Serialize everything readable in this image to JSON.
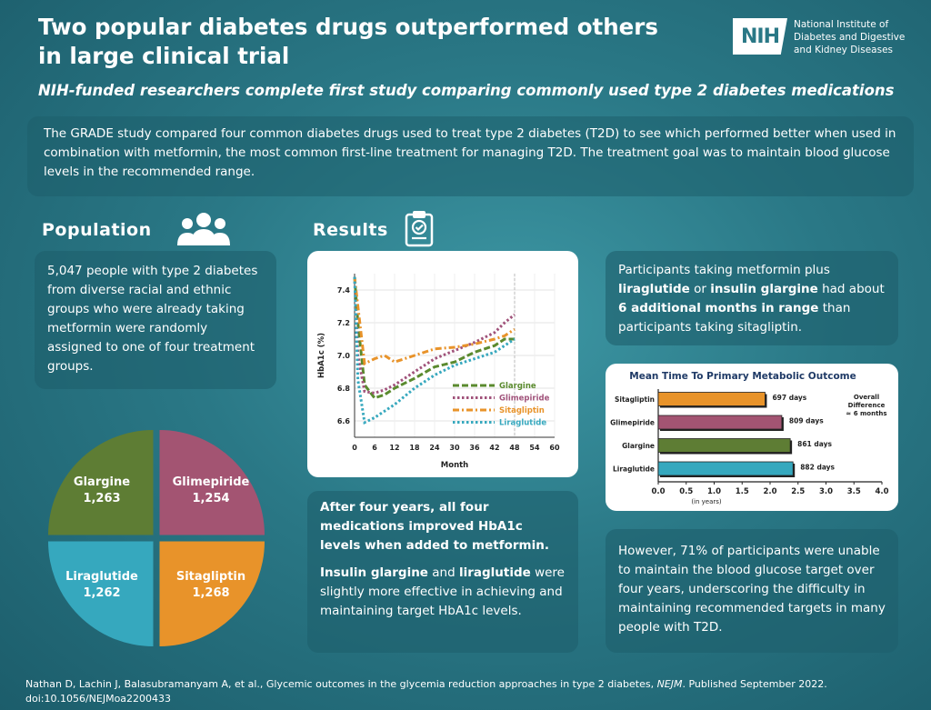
{
  "header": {
    "title_line1": "Two popular diabetes drugs outperformed others",
    "title_line2": "in large clinical trial",
    "subtitle": "NIH-funded researchers complete first study comparing commonly used type 2 diabetes medications",
    "logo_mark": "NIH",
    "logo_line1": "National Institute of",
    "logo_line2": "Diabetes and Digestive",
    "logo_line3": "and Kidney Diseases"
  },
  "intro": "The GRADE study compared four common diabetes drugs used to treat type 2 diabetes (T2D) to see which performed better when used in combination with metformin, the most common first-line treatment for managing T2D. The treatment goal was to maintain blood glucose levels in the recommended range.",
  "population": {
    "heading": "Population",
    "icon": "people-group-icon",
    "text": "5,047 people with type 2 diabetes from diverse racial and ethnic groups who were already taking metformin were randomly assigned to one of four treatment groups.",
    "pie": [
      {
        "name": "Glargine",
        "count": "1,263",
        "value": 1263,
        "color": "#5e7d34"
      },
      {
        "name": "Glimepiride",
        "count": "1,254",
        "value": 1254,
        "color": "#a35472"
      },
      {
        "name": "Liraglutide",
        "count": "1,262",
        "value": 1262,
        "color": "#36a8be"
      },
      {
        "name": "Sitagliptin",
        "count": "1,268",
        "value": 1268,
        "color": "#e8932a"
      }
    ]
  },
  "results": {
    "heading": "Results",
    "icon": "clipboard-check-icon",
    "findings_1": "After four years, all four medications improved HbA1c levels when added to metformin.",
    "findings_2_b1": "Insulin glargine",
    "findings_2_t1": " and ",
    "findings_2_b2": "liraglutide",
    "findings_2_t2": " were slightly more effective in achieving and maintaining target HbA1c levels.",
    "right_1_t1": "Participants taking metformin plus ",
    "right_1_b1": "liraglutide",
    "right_1_t2": " or ",
    "right_1_b2": "insulin glargine",
    "right_1_t3": " had about ",
    "right_1_b3": "6 additional months in range",
    "right_1_t4": " than participants taking sitagliptin.",
    "right_2": "However, 71% of participants were unable to maintain the blood glucose target over four years, underscoring the difficulty in maintaining recommended targets in many people with T2D."
  },
  "chart_data": [
    {
      "type": "line",
      "xlabel": "Month",
      "ylabel": "HbA1c (%)",
      "xlim": [
        0,
        60
      ],
      "ylim": [
        6.5,
        7.5
      ],
      "xticks": [
        "0",
        "6",
        "12",
        "18",
        "24",
        "30",
        "36",
        "42",
        "48",
        "54",
        "60"
      ],
      "yticks": [
        "6.6",
        "6.8",
        "7.0",
        "7.2",
        "7.4"
      ],
      "legend_position": "bottom-right",
      "series": [
        {
          "name": "Glargine",
          "color": "#5a8a2e",
          "dash": "dash",
          "x": [
            0,
            1,
            3,
            6,
            9,
            12,
            18,
            24,
            30,
            36,
            42,
            45,
            48
          ],
          "y": [
            7.48,
            7.2,
            6.82,
            6.74,
            6.76,
            6.8,
            6.86,
            6.93,
            6.96,
            7.02,
            7.06,
            7.1,
            7.1
          ]
        },
        {
          "name": "Glimepiride",
          "color": "#a0527a",
          "dash": "dot",
          "x": [
            0,
            1,
            3,
            6,
            9,
            12,
            18,
            24,
            30,
            36,
            42,
            45,
            48
          ],
          "y": [
            7.48,
            7.0,
            6.78,
            6.77,
            6.79,
            6.82,
            6.9,
            6.98,
            7.03,
            7.08,
            7.14,
            7.2,
            7.25
          ]
        },
        {
          "name": "Sitagliptin",
          "color": "#e8932a",
          "dash": "dashdot",
          "x": [
            0,
            1,
            3,
            6,
            9,
            12,
            18,
            24,
            30,
            36,
            42,
            45,
            48
          ],
          "y": [
            7.48,
            7.3,
            6.95,
            6.98,
            7.0,
            6.96,
            7.0,
            7.04,
            7.05,
            7.07,
            7.1,
            7.12,
            7.16
          ]
        },
        {
          "name": "Liraglutide",
          "color": "#36a8be",
          "dash": "dot",
          "x": [
            0,
            1,
            3,
            6,
            9,
            12,
            18,
            24,
            30,
            36,
            42,
            45,
            48
          ],
          "y": [
            7.48,
            6.85,
            6.59,
            6.62,
            6.66,
            6.7,
            6.8,
            6.88,
            6.94,
            6.98,
            7.02,
            7.06,
            7.1
          ]
        }
      ]
    },
    {
      "type": "bar",
      "title": "Mean Time To Primary Metabolic Outcome",
      "xlabel": "(in years)",
      "xlim": [
        0,
        4
      ],
      "xticks": [
        "0.0",
        "0.5",
        "1.0",
        "1.5",
        "2.0",
        "2.5",
        "3.0",
        "3.5",
        "4.0"
      ],
      "annotation_line1": "Overall",
      "annotation_line2": "Difference",
      "annotation_line3": "≈ 6 months",
      "categories": [
        "Sitagliptin",
        "Glimepiride",
        "Glargine",
        "Liraglutide"
      ],
      "labels": [
        "697 days",
        "809 days",
        "861 days",
        "882 days"
      ],
      "values": [
        1.91,
        2.21,
        2.36,
        2.41
      ],
      "colors": [
        "#e8932a",
        "#a35472",
        "#5e7d34",
        "#36a8be"
      ]
    }
  ],
  "citation": {
    "text": "Nathan D, Lachin J, Balasubramanyam A, et al., Glycemic outcomes in the glycemia reduction approaches in type 2 diabetes, ",
    "journal": "NEJM",
    "text2": ". Published September 2022.",
    "doi": "doi:10.1056/NEJMoa2200433"
  }
}
